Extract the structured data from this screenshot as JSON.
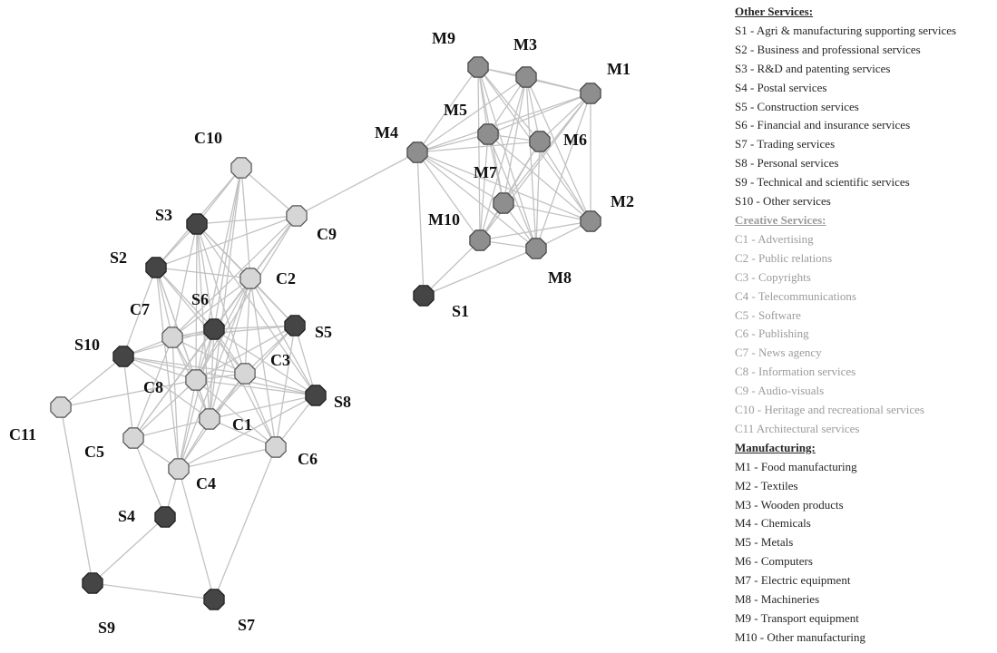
{
  "colors": {
    "other_services_node": "#454545",
    "manufacturing_node": "#8e8e8e",
    "creative_services_node": "#d6d6d6",
    "edge": "#c2c2c2",
    "legend_dark_text": "#262626",
    "legend_light_text": "#9b9b9b"
  },
  "nodes": [
    {
      "id": "S1",
      "group": "S"
    },
    {
      "id": "S2",
      "group": "S"
    },
    {
      "id": "S3",
      "group": "S"
    },
    {
      "id": "S4",
      "group": "S"
    },
    {
      "id": "S5",
      "group": "S"
    },
    {
      "id": "S6",
      "group": "S"
    },
    {
      "id": "S7",
      "group": "S"
    },
    {
      "id": "S8",
      "group": "S"
    },
    {
      "id": "S9",
      "group": "S"
    },
    {
      "id": "S10",
      "group": "S"
    },
    {
      "id": "M1",
      "group": "M"
    },
    {
      "id": "M2",
      "group": "M"
    },
    {
      "id": "M3",
      "group": "M"
    },
    {
      "id": "M4",
      "group": "M"
    },
    {
      "id": "M5",
      "group": "M"
    },
    {
      "id": "M6",
      "group": "M"
    },
    {
      "id": "M7",
      "group": "M"
    },
    {
      "id": "M8",
      "group": "M"
    },
    {
      "id": "M9",
      "group": "M"
    },
    {
      "id": "M10",
      "group": "M"
    },
    {
      "id": "C1",
      "group": "C"
    },
    {
      "id": "C2",
      "group": "C"
    },
    {
      "id": "C3",
      "group": "C"
    },
    {
      "id": "C4",
      "group": "C"
    },
    {
      "id": "C5",
      "group": "C"
    },
    {
      "id": "C6",
      "group": "C"
    },
    {
      "id": "C7",
      "group": "C"
    },
    {
      "id": "C8",
      "group": "C"
    },
    {
      "id": "C9",
      "group": "C"
    },
    {
      "id": "C10",
      "group": "C"
    },
    {
      "id": "C11",
      "group": "C"
    }
  ],
  "edges": [
    [
      "M4",
      "M9"
    ],
    [
      "M4",
      "M3"
    ],
    [
      "M4",
      "M1"
    ],
    [
      "M4",
      "M5"
    ],
    [
      "M4",
      "M6"
    ],
    [
      "M4",
      "M7"
    ],
    [
      "M4",
      "M10"
    ],
    [
      "M4",
      "M8"
    ],
    [
      "M4",
      "M2"
    ],
    [
      "M4",
      "S1"
    ],
    [
      "M4",
      "C9"
    ],
    [
      "M9",
      "M3"
    ],
    [
      "M9",
      "M1"
    ],
    [
      "M9",
      "M5"
    ],
    [
      "M9",
      "M6"
    ],
    [
      "M9",
      "M7"
    ],
    [
      "M9",
      "M10"
    ],
    [
      "M9",
      "M8"
    ],
    [
      "M9",
      "M2"
    ],
    [
      "M3",
      "M1"
    ],
    [
      "M3",
      "M5"
    ],
    [
      "M3",
      "M6"
    ],
    [
      "M3",
      "M7"
    ],
    [
      "M3",
      "M10"
    ],
    [
      "M3",
      "M8"
    ],
    [
      "M3",
      "M2"
    ],
    [
      "M1",
      "M5"
    ],
    [
      "M1",
      "M6"
    ],
    [
      "M1",
      "M7"
    ],
    [
      "M1",
      "M10"
    ],
    [
      "M1",
      "M8"
    ],
    [
      "M1",
      "M2"
    ],
    [
      "M5",
      "M6"
    ],
    [
      "M5",
      "M7"
    ],
    [
      "M5",
      "M10"
    ],
    [
      "M5",
      "M8"
    ],
    [
      "M5",
      "M2"
    ],
    [
      "M6",
      "M7"
    ],
    [
      "M6",
      "M10"
    ],
    [
      "M6",
      "M8"
    ],
    [
      "M6",
      "M2"
    ],
    [
      "M7",
      "M10"
    ],
    [
      "M7",
      "M8"
    ],
    [
      "M7",
      "M2"
    ],
    [
      "M10",
      "M8"
    ],
    [
      "M10",
      "M2"
    ],
    [
      "M10",
      "S1"
    ],
    [
      "M8",
      "M2"
    ],
    [
      "M8",
      "S1"
    ],
    [
      "C10",
      "C9"
    ],
    [
      "C10",
      "S3"
    ],
    [
      "C10",
      "S2"
    ],
    [
      "C10",
      "C2"
    ],
    [
      "C10",
      "S6"
    ],
    [
      "C10",
      "C1"
    ],
    [
      "C10",
      "C8"
    ],
    [
      "C9",
      "S3"
    ],
    [
      "C9",
      "S2"
    ],
    [
      "C9",
      "C2"
    ],
    [
      "C9",
      "S6"
    ],
    [
      "C9",
      "C7"
    ],
    [
      "C9",
      "C8"
    ],
    [
      "C9",
      "C5"
    ],
    [
      "S3",
      "S2"
    ],
    [
      "S3",
      "C2"
    ],
    [
      "S3",
      "S5"
    ],
    [
      "S3",
      "S6"
    ],
    [
      "S3",
      "C7"
    ],
    [
      "S3",
      "C8"
    ],
    [
      "S3",
      "C3"
    ],
    [
      "S3",
      "S8"
    ],
    [
      "S3",
      "C1"
    ],
    [
      "S2",
      "C2"
    ],
    [
      "S2",
      "C7"
    ],
    [
      "S2",
      "S6"
    ],
    [
      "S2",
      "S10"
    ],
    [
      "S2",
      "C8"
    ],
    [
      "S2",
      "C3"
    ],
    [
      "S2",
      "C1"
    ],
    [
      "S2",
      "C4"
    ],
    [
      "C2",
      "S6"
    ],
    [
      "C2",
      "S5"
    ],
    [
      "C2",
      "C7"
    ],
    [
      "C2",
      "C8"
    ],
    [
      "C2",
      "C3"
    ],
    [
      "C2",
      "S8"
    ],
    [
      "C2",
      "C1"
    ],
    [
      "C2",
      "C4"
    ],
    [
      "C2",
      "C6"
    ],
    [
      "C7",
      "S6"
    ],
    [
      "C7",
      "S10"
    ],
    [
      "C7",
      "C8"
    ],
    [
      "C7",
      "C3"
    ],
    [
      "C7",
      "C1"
    ],
    [
      "C7",
      "C5"
    ],
    [
      "C7",
      "C4"
    ],
    [
      "C7",
      "S5"
    ],
    [
      "S6",
      "S5"
    ],
    [
      "S6",
      "C8"
    ],
    [
      "S6",
      "C3"
    ],
    [
      "S6",
      "S8"
    ],
    [
      "S6",
      "C1"
    ],
    [
      "S6",
      "C5"
    ],
    [
      "S6",
      "C4"
    ],
    [
      "S6",
      "C6"
    ],
    [
      "S6",
      "S10"
    ],
    [
      "S5",
      "C3"
    ],
    [
      "S5",
      "S8"
    ],
    [
      "S5",
      "C8"
    ],
    [
      "S5",
      "C1"
    ],
    [
      "S5",
      "C6"
    ],
    [
      "S10",
      "C8"
    ],
    [
      "S10",
      "C3"
    ],
    [
      "S10",
      "C11"
    ],
    [
      "S10",
      "C1"
    ],
    [
      "S10",
      "C5"
    ],
    [
      "S10",
      "S8"
    ],
    [
      "C8",
      "C3"
    ],
    [
      "C8",
      "C1"
    ],
    [
      "C8",
      "C5"
    ],
    [
      "C8",
      "C4"
    ],
    [
      "C8",
      "S8"
    ],
    [
      "C8",
      "C6"
    ],
    [
      "C3",
      "S8"
    ],
    [
      "C3",
      "C1"
    ],
    [
      "C3",
      "C4"
    ],
    [
      "C3",
      "C6"
    ],
    [
      "S8",
      "C1"
    ],
    [
      "S8",
      "C6"
    ],
    [
      "S8",
      "C4"
    ],
    [
      "C1",
      "C5"
    ],
    [
      "C1",
      "C4"
    ],
    [
      "C1",
      "C6"
    ],
    [
      "C5",
      "C4"
    ],
    [
      "C5",
      "S4"
    ],
    [
      "C4",
      "S4"
    ],
    [
      "C4",
      "C6"
    ],
    [
      "C4",
      "S7"
    ],
    [
      "C6",
      "S7"
    ],
    [
      "C11",
      "S9"
    ],
    [
      "C11",
      "C8"
    ],
    [
      "S4",
      "S9"
    ],
    [
      "S9",
      "S7"
    ]
  ],
  "legend": {
    "other_services": {
      "title": "Other Services:",
      "items": [
        "S1 - Agri & manufacturing supporting services",
        "S2 - Business and professional services",
        "S3 - R&D and patenting services",
        "S4 - Postal services",
        "S5 - Construction services",
        "S6 - Financial and insurance services",
        "S7 - Trading services",
        "S8 - Personal services",
        "S9 - Technical and scientific services",
        "S10 - Other services"
      ]
    },
    "creative_services": {
      "title": "Creative Services:",
      "items": [
        "C1 - Advertising",
        "C2 - Public relations",
        "C3 - Copyrights",
        "C4 - Telecommunications",
        "C5 - Software",
        "C6 - Publishing",
        "C7 - News agency",
        "C8 - Information services",
        "C9 - Audio-visuals",
        "C10 - Heritage and recreational services",
        "C11 Architectural services"
      ]
    },
    "manufacturing": {
      "title": "Manufacturing:",
      "items": [
        "M1 - Food manufacturing",
        "M2 - Textiles",
        "M3 - Wooden products",
        "M4 - Chemicals",
        "M5 - Metals",
        "M6 - Computers",
        "M7 - Electric equipment",
        "M8 - Machineries",
        "M9 - Transport equipment",
        "M10 - Other manufacturing"
      ]
    }
  }
}
